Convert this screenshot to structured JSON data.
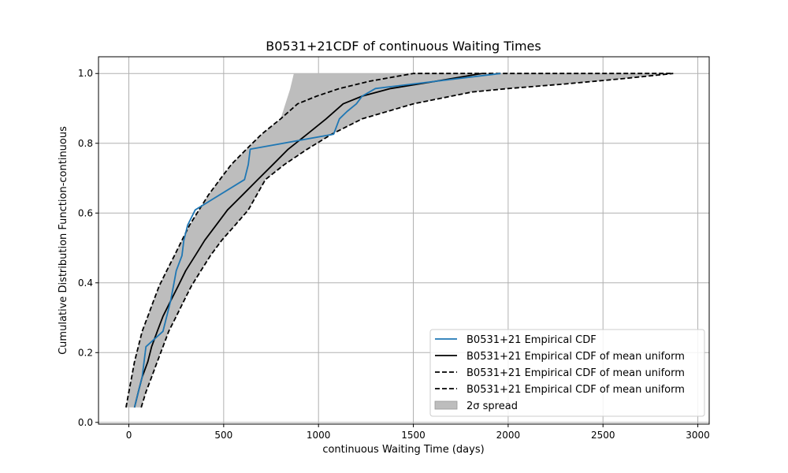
{
  "chart_data": {
    "type": "line",
    "title": "B0531+21CDF of continuous Waiting Times",
    "xlabel": "continuous Waiting Time (days)",
    "ylabel": "Cumulative Distribution Function-continuous",
    "xlim": [
      -160,
      3060
    ],
    "ylim": [
      -0.005,
      1.048
    ],
    "xticks": [
      0,
      500,
      1000,
      1500,
      2000,
      2500,
      3000
    ],
    "yticks": [
      0.0,
      0.2,
      0.4,
      0.6,
      0.8,
      1.0
    ],
    "xtick_labels": [
      "0",
      "500",
      "1000",
      "1500",
      "2000",
      "2500",
      "3000"
    ],
    "ytick_labels": [
      "0.0",
      "0.2",
      "0.4",
      "0.6",
      "0.8",
      "1.0"
    ],
    "grid": true,
    "legend_position": "lower-right",
    "series": [
      {
        "name": "B0531+21 Empirical CDF",
        "color": "#1f77b4",
        "style": "solid",
        "x": [
          30,
          50,
          70,
          90,
          180,
          200,
          220,
          235,
          250,
          280,
          290,
          310,
          330,
          350,
          610,
          630,
          640,
          1080,
          1110,
          1150,
          1200,
          1230,
          1300,
          1960
        ],
        "y": [
          0.043,
          0.087,
          0.13,
          0.217,
          0.261,
          0.304,
          0.348,
          0.391,
          0.435,
          0.478,
          0.522,
          0.565,
          0.587,
          0.609,
          0.696,
          0.739,
          0.783,
          0.826,
          0.87,
          0.891,
          0.913,
          0.935,
          0.957,
          1.0
        ]
      },
      {
        "name": "B0531+21 Empirical CDF of mean uniform",
        "color": "#000000",
        "style": "solid",
        "x": [
          30,
          50,
          70,
          100,
          120,
          150,
          180,
          220,
          260,
          300,
          350,
          400,
          460,
          520,
          600,
          680,
          760,
          840,
          940,
          1040,
          1130,
          1230,
          1380,
          1620,
          1860
        ],
        "y": [
          0.043,
          0.087,
          0.13,
          0.174,
          0.217,
          0.261,
          0.304,
          0.348,
          0.391,
          0.435,
          0.478,
          0.522,
          0.565,
          0.609,
          0.652,
          0.696,
          0.739,
          0.783,
          0.826,
          0.87,
          0.913,
          0.935,
          0.957,
          0.978,
          1.0
        ]
      },
      {
        "name": "B0531+21 Empirical CDF of mean uniform",
        "color": "#000000",
        "style": "dashed",
        "x": [
          -15,
          0,
          15,
          30,
          50,
          70,
          100,
          130,
          160,
          200,
          240,
          280,
          320,
          370,
          420,
          480,
          540,
          620,
          700,
          800,
          890,
          990,
          1110,
          1270,
          1500,
          1800,
          2200,
          2870
        ],
        "y": [
          0.043,
          0.087,
          0.13,
          0.174,
          0.217,
          0.261,
          0.304,
          0.348,
          0.391,
          0.435,
          0.478,
          0.522,
          0.565,
          0.609,
          0.652,
          0.696,
          0.739,
          0.783,
          0.826,
          0.87,
          0.913,
          0.935,
          0.957,
          0.978,
          1.0,
          1.0,
          1.0,
          1.0
        ]
      },
      {
        "name": "B0531+21 Empirical CDF of mean uniform",
        "color": "#000000",
        "style": "dashed",
        "x": [
          65,
          90,
          120,
          150,
          180,
          210,
          250,
          290,
          330,
          380,
          430,
          490,
          560,
          630,
          720,
          820,
          940,
          1070,
          1230,
          1500,
          1810,
          2000,
          2300,
          2600,
          2870
        ],
        "y": [
          0.043,
          0.087,
          0.13,
          0.174,
          0.217,
          0.261,
          0.304,
          0.348,
          0.391,
          0.435,
          0.478,
          0.522,
          0.565,
          0.609,
          0.696,
          0.739,
          0.783,
          0.826,
          0.87,
          0.913,
          0.947,
          0.957,
          0.97,
          0.985,
          1.0
        ]
      }
    ],
    "band": {
      "name": "2σ spread",
      "color": "#bdbdbd",
      "upper": {
        "x": [
          -15,
          0,
          15,
          30,
          50,
          70,
          100,
          130,
          160,
          200,
          240,
          280,
          320,
          370,
          420,
          480,
          540,
          620,
          700,
          800,
          850,
          870,
          2870
        ],
        "y": [
          0.043,
          0.087,
          0.13,
          0.174,
          0.217,
          0.261,
          0.304,
          0.348,
          0.391,
          0.435,
          0.478,
          0.522,
          0.565,
          0.609,
          0.652,
          0.696,
          0.739,
          0.783,
          0.826,
          0.87,
          0.955,
          1.0,
          1.0
        ]
      },
      "lower": {
        "x": [
          65,
          90,
          120,
          150,
          180,
          210,
          250,
          290,
          330,
          380,
          430,
          490,
          560,
          630,
          720,
          820,
          940,
          1070,
          1230,
          1500,
          1810,
          2000,
          2300,
          2600,
          2870
        ],
        "y": [
          0.043,
          0.087,
          0.13,
          0.174,
          0.217,
          0.261,
          0.304,
          0.348,
          0.391,
          0.435,
          0.478,
          0.522,
          0.565,
          0.609,
          0.696,
          0.739,
          0.783,
          0.826,
          0.87,
          0.913,
          0.947,
          0.957,
          0.97,
          0.985,
          1.0
        ]
      }
    },
    "legend": [
      {
        "label": "B0531+21 Empirical CDF",
        "kind": "line",
        "color": "#1f77b4",
        "style": "solid"
      },
      {
        "label": "B0531+21 Empirical CDF of mean uniform",
        "kind": "line",
        "color": "#000000",
        "style": "solid"
      },
      {
        "label": "B0531+21 Empirical CDF of mean uniform",
        "kind": "line",
        "color": "#000000",
        "style": "dashed"
      },
      {
        "label": "B0531+21 Empirical CDF of mean uniform",
        "kind": "line",
        "color": "#000000",
        "style": "dashed"
      },
      {
        "label": "2σ spread",
        "kind": "patch",
        "color": "#bdbdbd",
        "style": "solid"
      }
    ]
  }
}
